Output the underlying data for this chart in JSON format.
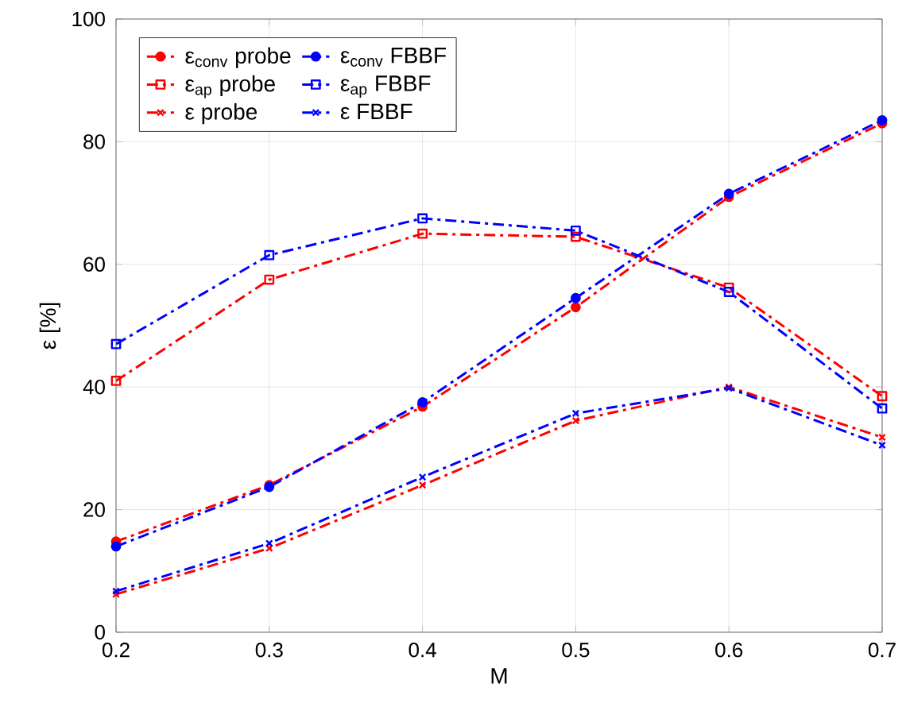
{
  "chart_data": {
    "type": "line",
    "xlabel": "M",
    "ylabel": "ε [%]",
    "x": [
      0.2,
      0.3,
      0.4,
      0.5,
      0.6,
      0.7
    ],
    "xlim": [
      0.2,
      0.7
    ],
    "xticks": [
      0.2,
      0.3,
      0.4,
      0.5,
      0.6,
      0.7
    ],
    "ylim": [
      0,
      100
    ],
    "yticks": [
      0,
      20,
      40,
      60,
      80,
      100
    ],
    "grid": true,
    "legend": "top left",
    "line_style": "dashed",
    "series": [
      {
        "name": "ε$_{conv}$ probe",
        "color": "#ff0000",
        "marker": "circle",
        "values": [
          14.8,
          24,
          36.8,
          53,
          71,
          83
        ]
      },
      {
        "name": "ε$_{conv}$ FBBF",
        "color": "#0000ff",
        "marker": "circle",
        "values": [
          14,
          23.7,
          37.5,
          54.5,
          71.5,
          83.5
        ]
      },
      {
        "name": "ε$_{ap}$ probe",
        "color": "#ff0000",
        "marker": "square",
        "values": [
          41,
          57.5,
          65,
          64.5,
          56.2,
          38.5
        ]
      },
      {
        "name": "ε$_{ap}$ FBBF",
        "color": "#0000ff",
        "marker": "square",
        "values": [
          47,
          61.5,
          67.5,
          65.5,
          55.5,
          36.5
        ]
      },
      {
        "name": "ε probe",
        "color": "#ff0000",
        "marker": "cross",
        "values": [
          6.2,
          13.7,
          24,
          34.5,
          40,
          31.8
        ]
      },
      {
        "name": "ε FBBF",
        "color": "#0000ff",
        "marker": "cross",
        "values": [
          6.7,
          14.5,
          25.3,
          35.7,
          39.8,
          30.5
        ]
      }
    ]
  }
}
